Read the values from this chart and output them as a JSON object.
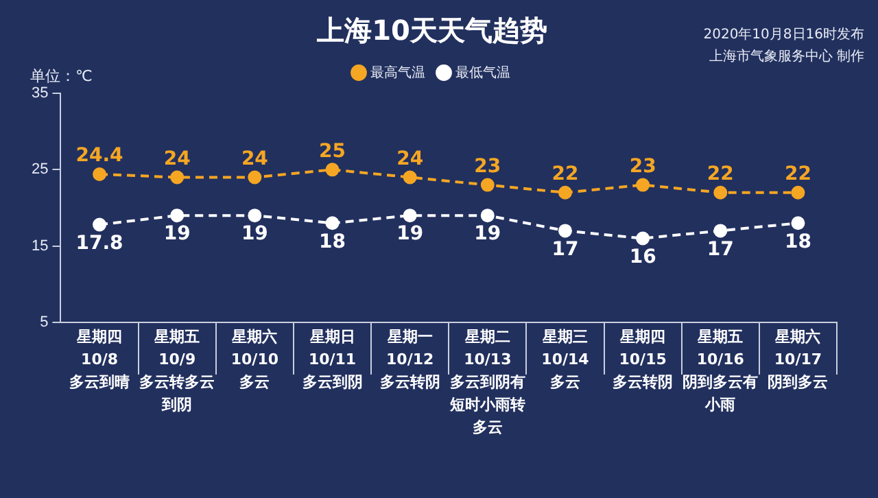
{
  "chart_data": {
    "type": "line",
    "title": "上海10天天气趋势",
    "ylabel": "单位：℃",
    "annotations": [
      "2020年10月8日16时发布",
      "上海市气象服务中心 制作"
    ],
    "categories": [
      "星期四\n10/8\n多云到晴",
      "星期五\n10/9\n多云转多云到阴",
      "星期六\n10/10\n多云",
      "星期日\n10/11\n多云到阴",
      "星期一\n10/12\n多云转阴",
      "星期二\n10/13\n多云到阴有短时小雨转多云",
      "星期三\n10/14\n多云",
      "星期四\n10/15\n多云转阴",
      "星期五\n10/16\n阴到多云有小雨",
      "星期六\n10/17\n阴到多云"
    ],
    "series": [
      {
        "name": "最高气温",
        "color": "#f5a623",
        "values": [
          24.4,
          24,
          24,
          25,
          24,
          23,
          22,
          23,
          22,
          22
        ]
      },
      {
        "name": "最低气温",
        "color": "#ffffff",
        "values": [
          17.8,
          19,
          19,
          18,
          19,
          19,
          17,
          16,
          17,
          18
        ]
      }
    ],
    "ylim": [
      5,
      35
    ],
    "yticks": [
      5,
      15,
      25,
      35
    ],
    "data_labels": true,
    "legend": "top",
    "marker": "circle",
    "line_style": "dashed"
  }
}
